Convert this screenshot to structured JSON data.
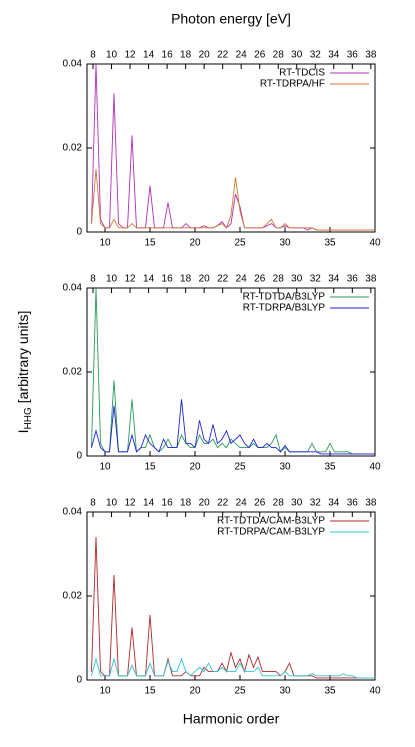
{
  "chart_data": [
    {
      "type": "line",
      "x2label": "Photon energy [eV]",
      "x": [
        8.5,
        9,
        9.5,
        10,
        10.5,
        11,
        11.5,
        12,
        12.5,
        13,
        13.5,
        14,
        14.5,
        15,
        15.5,
        16,
        16.5,
        17,
        17.5,
        18,
        18.5,
        19,
        19.5,
        20,
        20.5,
        21,
        21.5,
        22,
        22.5,
        23,
        23.5,
        24,
        24.5,
        25,
        25.5,
        26,
        26.5,
        27,
        27.5,
        28,
        28.5,
        29,
        29.5,
        30,
        30.5,
        31,
        31.5,
        32,
        32.5,
        33,
        33.5,
        34,
        34.5,
        35,
        35.5,
        36,
        36.5,
        37,
        37.5,
        38,
        38.5,
        39,
        39.5,
        40
      ],
      "xlim": [
        8,
        40
      ],
      "xticks": [
        10,
        15,
        20,
        25,
        30,
        35,
        40
      ],
      "x2lim": [
        7.35,
        38.45
      ],
      "x2ticks": [
        8,
        10,
        12,
        14,
        16,
        18,
        20,
        22,
        24,
        26,
        28,
        30,
        32,
        34,
        36,
        38
      ],
      "ylim": [
        0,
        0.04
      ],
      "yticks": [
        0,
        0.02,
        0.04
      ],
      "legend": "upper right",
      "series": [
        {
          "name": "RT-TDCIS",
          "color": "#b030b8",
          "values": [
            0.002,
            0.04,
            0.003,
            0.001,
            0.001,
            0.033,
            0.002,
            0.001,
            0.001,
            0.023,
            0.001,
            0.001,
            0.001,
            0.011,
            0.001,
            0.001,
            0.001,
            0.007,
            0.001,
            0.001,
            0.001,
            0.002,
            0.001,
            0.001,
            0.001,
            0.0015,
            0.001,
            0.001,
            0.0015,
            0.0025,
            0.001,
            0.002,
            0.009,
            0.006,
            0.001,
            0.001,
            0.001,
            0.001,
            0.001,
            0.0015,
            0.002,
            0.001,
            0.001,
            0.0015,
            0.001,
            0.001,
            0.001,
            0.001,
            0.0005,
            0.001,
            0.0005,
            0.0005,
            0.0005,
            0.0005,
            0.0005,
            0.0005,
            0.0005,
            0.0005,
            0.0005,
            0.0005,
            0.0005,
            0.0005,
            0.0005,
            0.0005
          ]
        },
        {
          "name": "RT-TDRPA/HF",
          "color": "#d07830",
          "values": [
            0.002,
            0.015,
            0.002,
            0.001,
            0.001,
            0.003,
            0.001,
            0.001,
            0.001,
            0.002,
            0.001,
            0.001,
            0.001,
            0.001,
            0.001,
            0.001,
            0.001,
            0.001,
            0.001,
            0.001,
            0.001,
            0.001,
            0.001,
            0.001,
            0.001,
            0.001,
            0.001,
            0.001,
            0.0015,
            0.002,
            0.001,
            0.004,
            0.013,
            0.005,
            0.001,
            0.001,
            0.001,
            0.001,
            0.001,
            0.002,
            0.003,
            0.001,
            0.001,
            0.002,
            0.001,
            0.001,
            0.001,
            0.001,
            0.001,
            0.001,
            0.0005,
            0.0005,
            0.0005,
            0.0005,
            0.0005,
            0.0005,
            0.0005,
            0.0005,
            0.0005,
            0.0005,
            0.0005,
            0.0005,
            0.0005,
            0.0005
          ]
        }
      ]
    },
    {
      "type": "line",
      "ylabel": "I",
      "ylabel_sub": "HHG",
      "ylabel_rest": "[arbitrary units]",
      "x": [
        8.5,
        9,
        9.5,
        10,
        10.5,
        11,
        11.5,
        12,
        12.5,
        13,
        13.5,
        14,
        14.5,
        15,
        15.5,
        16,
        16.5,
        17,
        17.5,
        18,
        18.5,
        19,
        19.5,
        20,
        20.5,
        21,
        21.5,
        22,
        22.5,
        23,
        23.5,
        24,
        24.5,
        25,
        25.5,
        26,
        26.5,
        27,
        27.5,
        28,
        28.5,
        29,
        29.5,
        30,
        30.5,
        31,
        31.5,
        32,
        32.5,
        33,
        33.5,
        34,
        34.5,
        35,
        35.5,
        36,
        36.5,
        37,
        37.5,
        38,
        38.5,
        39,
        39.5,
        40
      ],
      "xlim": [
        8,
        40
      ],
      "xticks": [
        10,
        15,
        20,
        25,
        30,
        35,
        40
      ],
      "x2lim": [
        7.35,
        38.45
      ],
      "x2ticks": [
        8,
        10,
        12,
        14,
        16,
        18,
        20,
        22,
        24,
        26,
        28,
        30,
        32,
        34,
        36,
        38
      ],
      "ylim": [
        0,
        0.04
      ],
      "yticks": [
        0,
        0.02,
        0.04
      ],
      "legend": "upper right",
      "series": [
        {
          "name": "RT-TDTDA/B3LYP",
          "color": "#2a9a5a",
          "values": [
            0.002,
            0.04,
            0.003,
            0.001,
            0.001,
            0.018,
            0.001,
            0.001,
            0.001,
            0.0135,
            0.001,
            0.002,
            0.002,
            0.005,
            0.002,
            0.001,
            0.002,
            0.004,
            0.002,
            0.002,
            0.005,
            0.003,
            0.002,
            0.002,
            0.005,
            0.003,
            0.003,
            0.004,
            0.002,
            0.003,
            0.002,
            0.004,
            0.003,
            0.002,
            0.002,
            0.002,
            0.003,
            0.002,
            0.002,
            0.002,
            0.003,
            0.005,
            0.001,
            0.002,
            0.001,
            0.001,
            0.001,
            0.001,
            0.001,
            0.003,
            0.001,
            0.001,
            0.001,
            0.003,
            0.001,
            0.001,
            0.001,
            0.001,
            0.0005,
            0.0005,
            0.0005,
            0.0005,
            0.0005,
            0.0005
          ]
        },
        {
          "name": "RT-TDRPA/B3LYP",
          "color": "#2222d8",
          "values": [
            0.002,
            0.006,
            0.002,
            0.001,
            0.001,
            0.012,
            0.001,
            0.001,
            0.001,
            0.005,
            0.001,
            0.002,
            0.005,
            0.003,
            0.002,
            0.001,
            0.004,
            0.002,
            0.002,
            0.002,
            0.0135,
            0.003,
            0.003,
            0.002,
            0.0085,
            0.004,
            0.003,
            0.0075,
            0.003,
            0.004,
            0.006,
            0.003,
            0.004,
            0.005,
            0.003,
            0.002,
            0.004,
            0.002,
            0.002,
            0.003,
            0.002,
            0.002,
            0.001,
            0.0025,
            0.001,
            0.001,
            0.001,
            0.001,
            0.001,
            0.001,
            0.001,
            0.0005,
            0.0005,
            0.0005,
            0.0005,
            0.0005,
            0.0005,
            0.0005,
            0.0005,
            0.0005,
            0.0005,
            0.0005,
            0.0005,
            0.0005
          ]
        }
      ]
    },
    {
      "type": "line",
      "xlabel": "Harmonic order",
      "x": [
        8.5,
        9,
        9.5,
        10,
        10.5,
        11,
        11.5,
        12,
        12.5,
        13,
        13.5,
        14,
        14.5,
        15,
        15.5,
        16,
        16.5,
        17,
        17.5,
        18,
        18.5,
        19,
        19.5,
        20,
        20.5,
        21,
        21.5,
        22,
        22.5,
        23,
        23.5,
        24,
        24.5,
        25,
        25.5,
        26,
        26.5,
        27,
        27.5,
        28,
        28.5,
        29,
        29.5,
        30,
        30.5,
        31,
        31.5,
        32,
        32.5,
        33,
        33.5,
        34,
        34.5,
        35,
        35.5,
        36,
        36.5,
        37,
        37.5,
        38,
        38.5,
        39,
        39.5,
        40
      ],
      "xlim": [
        8,
        40
      ],
      "xticks": [
        10,
        15,
        20,
        25,
        30,
        35,
        40
      ],
      "x2lim": [
        7.35,
        38.45
      ],
      "x2ticks": [
        8,
        10,
        12,
        14,
        16,
        18,
        20,
        22,
        24,
        26,
        28,
        30,
        32,
        34,
        36,
        38
      ],
      "ylim": [
        0,
        0.04
      ],
      "yticks": [
        0,
        0.02,
        0.04
      ],
      "legend": "upper right",
      "series": [
        {
          "name": "RT-TDTDA/CAM-B3LYP",
          "color": "#b02a2a",
          "values": [
            0.002,
            0.034,
            0.002,
            0.001,
            0.001,
            0.025,
            0.001,
            0.001,
            0.001,
            0.0125,
            0.001,
            0.001,
            0.001,
            0.0155,
            0.001,
            0.001,
            0.001,
            0.005,
            0.001,
            0.001,
            0.001,
            0.002,
            0.001,
            0.001,
            0.001,
            0.003,
            0.002,
            0.002,
            0.002,
            0.004,
            0.002,
            0.0065,
            0.003,
            0.005,
            0.002,
            0.006,
            0.003,
            0.0055,
            0.002,
            0.002,
            0.002,
            0.002,
            0.001,
            0.002,
            0.004,
            0.001,
            0.001,
            0.001,
            0.001,
            0.001,
            0.0005,
            0.0005,
            0.0005,
            0.0005,
            0.0005,
            0.0005,
            0.0005,
            0.0005,
            0.0005,
            0.0005,
            0.0005,
            0.0005,
            0.0005,
            0.0005
          ]
        },
        {
          "name": "RT-TDRPA/CAM-B3LYP",
          "color": "#30c4d8",
          "values": [
            0.001,
            0.005,
            0.001,
            0.001,
            0.001,
            0.005,
            0.001,
            0.001,
            0.001,
            0.0035,
            0.001,
            0.001,
            0.001,
            0.004,
            0.001,
            0.001,
            0.001,
            0.0045,
            0.002,
            0.002,
            0.005,
            0.002,
            0.001,
            0.002,
            0.003,
            0.002,
            0.004,
            0.002,
            0.002,
            0.003,
            0.002,
            0.002,
            0.002,
            0.004,
            0.002,
            0.002,
            0.002,
            0.003,
            0.001,
            0.001,
            0.001,
            0.001,
            0.001,
            0.002,
            0.001,
            0.001,
            0.001,
            0.001,
            0.001,
            0.0015,
            0.001,
            0.001,
            0.001,
            0.001,
            0.001,
            0.001,
            0.0015,
            0.001,
            0.001,
            0.0005,
            0.0005,
            0.0005,
            0.0005,
            0.0005
          ]
        }
      ]
    }
  ]
}
